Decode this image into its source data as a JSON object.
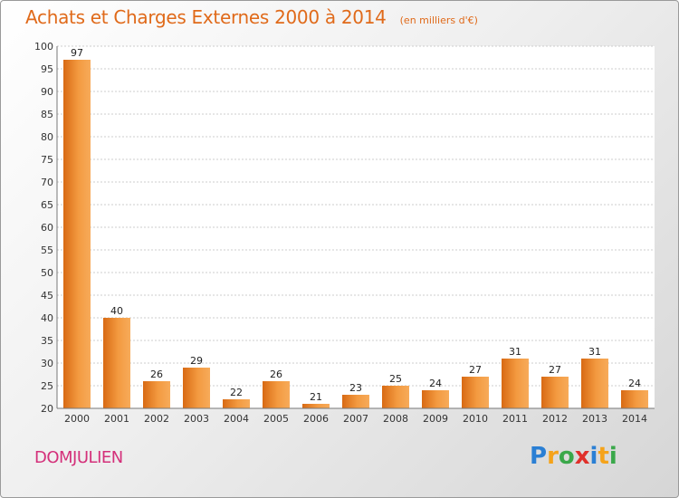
{
  "title": "Achats et Charges Externes 2000 à 2014",
  "subtitle": "(en milliers d'€)",
  "commune": "DOMJULIEN",
  "logo": {
    "letters": [
      {
        "char": "P",
        "color": "#2a7fd4"
      },
      {
        "char": "r",
        "color": "#f5a31a"
      },
      {
        "char": "o",
        "color": "#3aa84a"
      },
      {
        "char": "x",
        "color": "#e0302a"
      },
      {
        "char": "i",
        "color": "#2a7fd4"
      },
      {
        "char": "t",
        "color": "#f5a31a"
      },
      {
        "char": "i",
        "color": "#3aa84a"
      }
    ]
  },
  "chart_data": {
    "type": "bar",
    "categories": [
      "2000",
      "2001",
      "2002",
      "2003",
      "2004",
      "2005",
      "2006",
      "2007",
      "2008",
      "2009",
      "2010",
      "2011",
      "2012",
      "2013",
      "2014"
    ],
    "values": [
      97,
      40,
      26,
      29,
      22,
      26,
      21,
      23,
      25,
      24,
      27,
      31,
      27,
      31,
      24
    ],
    "ylim": [
      20,
      100
    ],
    "yticks": [
      "20",
      "25",
      "30",
      "35",
      "40",
      "45",
      "50",
      "55",
      "60",
      "65",
      "70",
      "75",
      "80",
      "85",
      "90",
      "95",
      "100"
    ],
    "grid": true,
    "bar_color": "#f08a30"
  }
}
